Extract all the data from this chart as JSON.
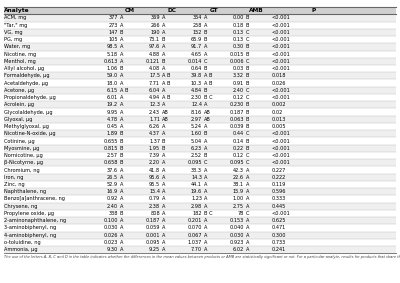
{
  "rows": [
    [
      "ACM, mg",
      "377",
      "A",
      "369",
      "A",
      "354",
      "A",
      "0.00",
      "B",
      "<0.001"
    ],
    [
      "\"Tar,\" mg",
      "273",
      "A",
      "266",
      "A",
      "258",
      "A",
      "0.18",
      "B",
      "<0.001"
    ],
    [
      "VG, mg",
      "147",
      "B",
      "190",
      "A",
      "152",
      "B",
      "0.13",
      "C",
      "<0.001"
    ],
    [
      "PG, mg",
      "105",
      "A",
      "73.1",
      "B",
      "65.9",
      "B",
      "0.13",
      "C",
      "<0.001"
    ],
    [
      "Water, mg",
      "98.5",
      "A",
      "97.6",
      "A",
      "91.7",
      "A",
      "0.30",
      "B",
      "<0.001"
    ],
    [
      "Nicotine, mg",
      "5.18",
      "A",
      "4.88",
      "A",
      "4.65",
      "A",
      "0.015",
      "B",
      "<0.001"
    ],
    [
      "Menthol, mg",
      "0.613",
      "A",
      "0.121",
      "B",
      "0.014",
      "C",
      "0.006",
      "C",
      "<0.001"
    ],
    [
      "Allyl alcohol, μg",
      "1.06",
      "B",
      "4.08",
      "A",
      "0.64",
      "B",
      "0.03",
      "B",
      "<0.001"
    ],
    [
      "Formaldehyde, μg",
      "59.0",
      "A",
      "17.5",
      "A B",
      "39.8",
      "A B",
      "3.32",
      "B",
      "0.018"
    ],
    [
      "Acetaldehyde, μg",
      "18.0",
      "A",
      "7.71",
      "A B",
      "10.3",
      "A B",
      "0.91",
      "B",
      "0.026"
    ],
    [
      "Acetone, μg",
      "6.15",
      "A B",
      "6.04",
      "A",
      "4.84",
      "B",
      "2.40",
      "C",
      "<0.001"
    ],
    [
      "Propionaldehyde, μg",
      "6.01",
      "A",
      "4.94",
      "A B",
      "2.30",
      "B C",
      "0.12",
      "C",
      "<0.001"
    ],
    [
      "Acrolein, μg",
      "19.2",
      "A",
      "12.3",
      "A",
      "12.4",
      "A",
      "0.230",
      "B",
      "0.002"
    ],
    [
      "Glycolaldehyde, μg",
      "9.95",
      "A",
      "2.43",
      "AB",
      "8.16",
      "AB",
      "0.187",
      "B",
      "0.02"
    ],
    [
      "Glyoxal, μg",
      "4.78",
      "A",
      "1.71",
      "AB",
      "2.97",
      "AB",
      "0.063",
      "B",
      "0.013"
    ],
    [
      "Methylglyoxal, μg",
      "0.45",
      "A",
      "6.26",
      "A",
      "5.24",
      "A",
      "0.039",
      "B",
      "0.005"
    ],
    [
      "Nicotine-N-oxide, μg",
      "1.89",
      "B",
      "4.37",
      "A",
      "1.60",
      "B",
      "0.44",
      "C",
      "<0.001"
    ],
    [
      "Cotinine, μg",
      "0.655",
      "B",
      "1.37",
      "B",
      "5.04",
      "A",
      "0.14",
      "B",
      "<0.001"
    ],
    [
      "Myosmine, μg",
      "0.815",
      "B",
      "1.95",
      "B",
      "6.23",
      "A",
      "0.22",
      "B",
      "<0.001"
    ],
    [
      "Nornicotine, μg",
      "2.57",
      "B",
      "7.39",
      "A",
      "2.52",
      "B",
      "0.12",
      "C",
      "<0.001"
    ],
    [
      "β-Nicotyrne, μg",
      "0.658",
      "B",
      "2.20",
      "A",
      "0.095",
      "C",
      "0.095",
      "C",
      "<0.001"
    ],
    [
      "Chromium, ng",
      "37.6",
      "A",
      "41.8",
      "A",
      "33.3",
      "A",
      "42.3",
      "A",
      "0.227"
    ],
    [
      "Iron, ng",
      "26.5",
      "A",
      "95.6",
      "A",
      "14.3",
      "A",
      "22.6",
      "A",
      "0.222"
    ],
    [
      "Zinc, ng",
      "52.9",
      "A",
      "95.5",
      "A",
      "44.1",
      "A",
      "38.1",
      "A",
      "0.119"
    ],
    [
      "Naphthalene, ng",
      "16.9",
      "A",
      "15.4",
      "A",
      "19.6",
      "A",
      "15.9",
      "A",
      "0.596"
    ],
    [
      "Benzo[a]anthracene, ng",
      "0.92",
      "A",
      "0.79",
      "A",
      "1.23",
      "A",
      "1.00",
      "A",
      "0.333"
    ],
    [
      "Chrysene, ng",
      "2.40",
      "A",
      "2.38",
      "A",
      "2.98",
      "A",
      "2.75",
      "A",
      "0.445"
    ],
    [
      "Propylene oxide, μg",
      "338",
      "B",
      "808",
      "A",
      "182",
      "B C",
      "78",
      "C",
      "<0.001"
    ],
    [
      "2-aminonaphthalene, ng",
      "0.100",
      "A",
      "0.187",
      "A",
      "0.201",
      "A",
      "0.153",
      "A",
      "0.625"
    ],
    [
      "3-aminobiphenyl, ng",
      "0.030",
      "A",
      "0.059",
      "A",
      "0.070",
      "A",
      "0.040",
      "A",
      "0.471"
    ],
    [
      "4-aminobiphenyl, ng",
      "0.026",
      "A",
      "0.001",
      "A",
      "0.067",
      "A",
      "0.030",
      "A",
      "0.300"
    ],
    [
      "o-toluidine, ng",
      "0.023",
      "A",
      "0.095",
      "A",
      "1.037",
      "A",
      "0.923",
      "A",
      "0.733"
    ],
    [
      "Ammonia, μg",
      "9.30",
      "A",
      "9.25",
      "A",
      "7.70",
      "A",
      "6.02",
      "A",
      "0.241"
    ]
  ],
  "footnote": "The use of the letters A, B, C and D in the table indicates whether the differences in the mean values between products or AMB are statistically significant or not. For a particular analyte, results for products that share the same letter are not significantly different, and where the letters differ the means are significantly different.",
  "header_bg": "#d0d0d0",
  "alt_row_bg": "#efefef",
  "row_bg": "#ffffff",
  "text_color": "#000000",
  "col_headers": [
    "Analyte",
    "CM",
    "DC",
    "GT",
    "AMB",
    "P"
  ]
}
